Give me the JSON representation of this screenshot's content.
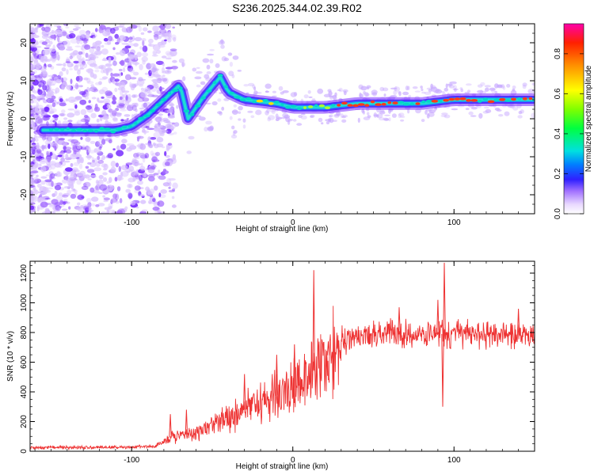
{
  "title": "S236.2025.344.02.39.R02",
  "chart_data": [
    {
      "type": "heatmap",
      "name": "spectrogram",
      "xlabel": "Height of straight line (km)",
      "ylabel": "Frequency (Hz)",
      "xlim": [
        -163,
        150
      ],
      "ylim": [
        -25,
        25
      ],
      "xticks": [
        -100,
        0,
        100
      ],
      "yticks": [
        -20,
        -10,
        0,
        10,
        20
      ],
      "ridge": [
        {
          "x": -150,
          "y": -3
        },
        {
          "x": -130,
          "y": -3
        },
        {
          "x": -110,
          "y": -3
        },
        {
          "x": -100,
          "y": -2
        },
        {
          "x": -90,
          "y": 1
        },
        {
          "x": -80,
          "y": 5
        },
        {
          "x": -70,
          "y": 9
        },
        {
          "x": -65,
          "y": 0
        },
        {
          "x": -55,
          "y": 6
        },
        {
          "x": -45,
          "y": 11
        },
        {
          "x": -40,
          "y": 7
        },
        {
          "x": -30,
          "y": 5
        },
        {
          "x": -10,
          "y": 4
        },
        {
          "x": 0,
          "y": 3
        },
        {
          "x": 20,
          "y": 3
        },
        {
          "x": 40,
          "y": 4
        },
        {
          "x": 60,
          "y": 4
        },
        {
          "x": 80,
          "y": 4
        },
        {
          "x": 100,
          "y": 5
        },
        {
          "x": 130,
          "y": 5
        },
        {
          "x": 150,
          "y": 5
        }
      ],
      "colorbar": {
        "label": "Normalized spectral amplitude",
        "range": [
          0,
          0.95
        ],
        "ticks": [
          0.0,
          0.2,
          0.4,
          0.6,
          0.8
        ]
      }
    },
    {
      "type": "line",
      "name": "snr",
      "xlabel": "Height of straight line (km)",
      "ylabel": "SNR (10 * v/v)",
      "xlim": [
        -163,
        150
      ],
      "ylim": [
        0,
        1280
      ],
      "xticks": [
        -100,
        0,
        100
      ],
      "yticks": [
        0,
        200,
        400,
        600,
        800,
        1000,
        1200
      ],
      "color": "#ee3333",
      "trend": [
        {
          "x": -163,
          "y": 25
        },
        {
          "x": -130,
          "y": 25
        },
        {
          "x": -100,
          "y": 28
        },
        {
          "x": -85,
          "y": 35
        },
        {
          "x": -75,
          "y": 100
        },
        {
          "x": -60,
          "y": 120
        },
        {
          "x": -40,
          "y": 230
        },
        {
          "x": -20,
          "y": 330
        },
        {
          "x": 0,
          "y": 420
        },
        {
          "x": 10,
          "y": 500
        },
        {
          "x": 20,
          "y": 620
        },
        {
          "x": 30,
          "y": 750
        },
        {
          "x": 50,
          "y": 790
        },
        {
          "x": 80,
          "y": 790
        },
        {
          "x": 110,
          "y": 790
        },
        {
          "x": 150,
          "y": 780
        }
      ],
      "spikes": [
        {
          "x": -76,
          "y": 250
        },
        {
          "x": -66,
          "y": 280
        },
        {
          "x": -30,
          "y": 520
        },
        {
          "x": -10,
          "y": 650
        },
        {
          "x": 1,
          "y": 720
        },
        {
          "x": 13,
          "y": 1220
        },
        {
          "x": 22,
          "y": 740
        },
        {
          "x": 66,
          "y": 970
        },
        {
          "x": 90,
          "y": 1020
        },
        {
          "x": 94,
          "y": 1270
        },
        {
          "x": 93,
          "y": 300
        },
        {
          "x": 140,
          "y": 960
        }
      ]
    }
  ]
}
